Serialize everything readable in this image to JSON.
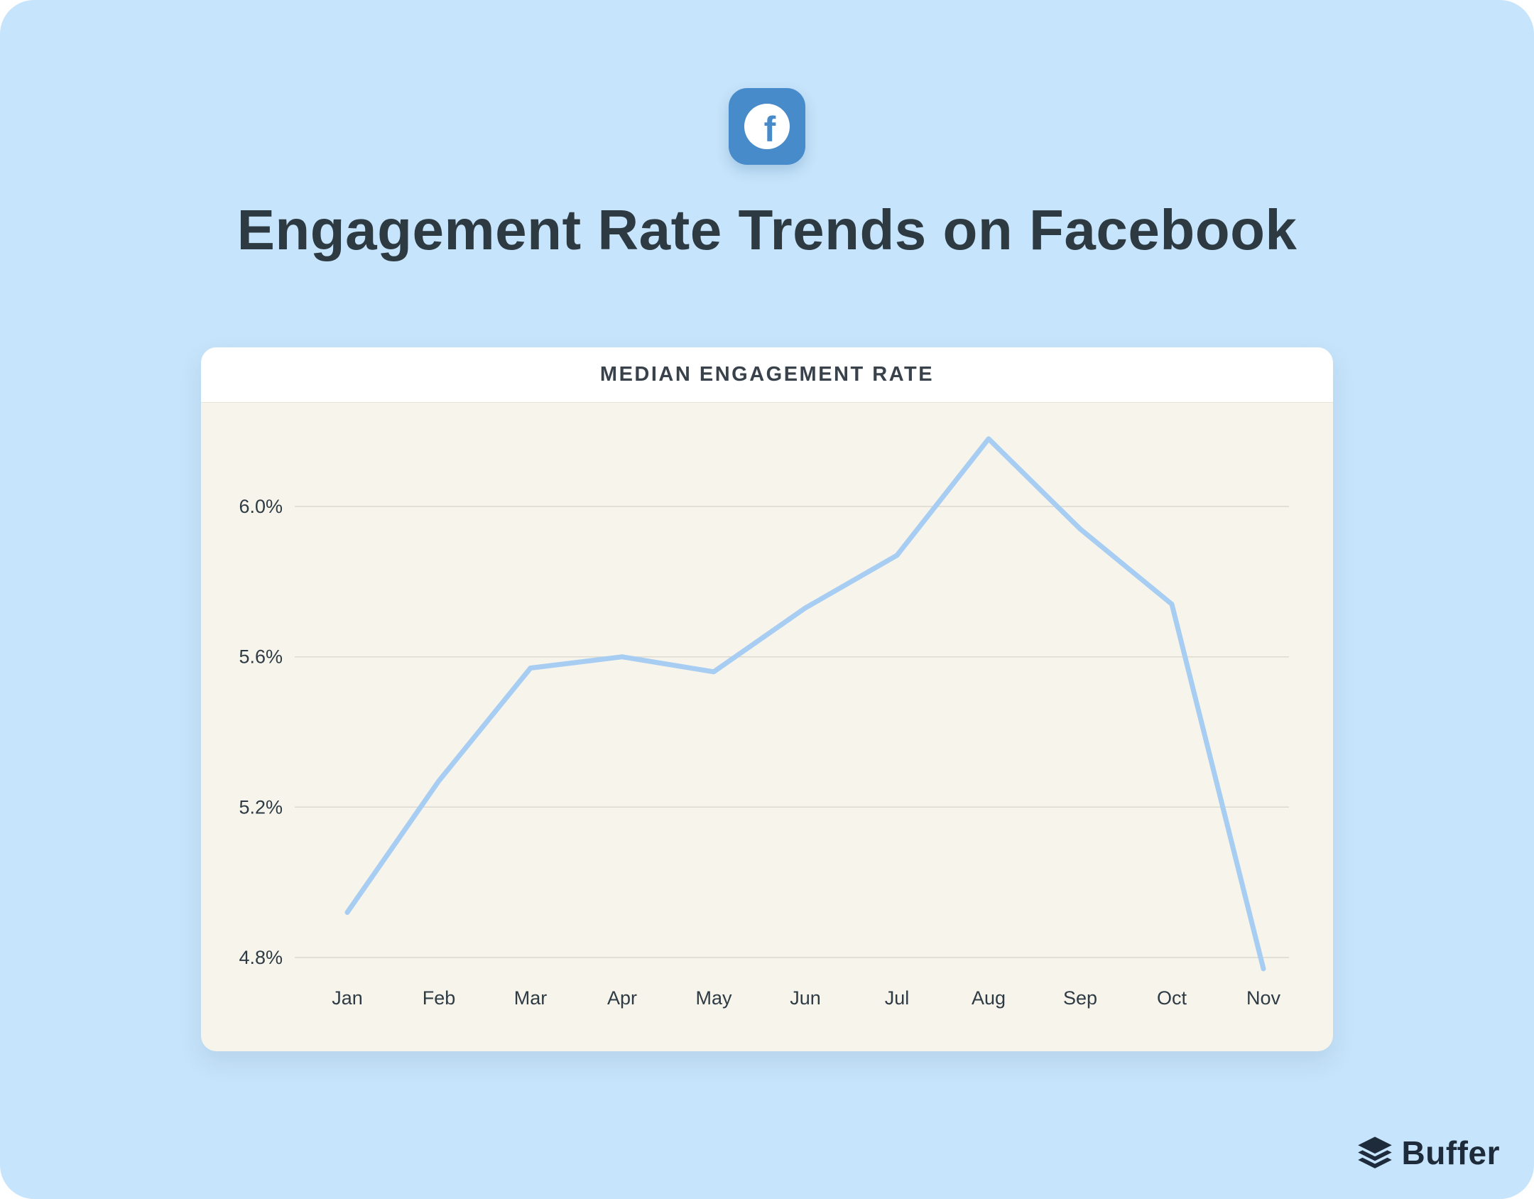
{
  "page": {
    "background": "#C6E4FB"
  },
  "header": {
    "title": "Engagement Rate Trends on Facebook"
  },
  "icons": {
    "facebook_glyph": "f",
    "facebook_color": "#478BCA",
    "buffer_color": "#1D2B3A"
  },
  "card": {
    "title": "MEDIAN ENGAGEMENT RATE"
  },
  "chart_data": {
    "type": "line",
    "title": "Median Engagement Rate",
    "categories": [
      "Jan",
      "Feb",
      "Mar",
      "Apr",
      "May",
      "Jun",
      "Jul",
      "Aug",
      "Sep",
      "Oct",
      "Nov"
    ],
    "values": [
      4.92,
      5.27,
      5.57,
      5.6,
      5.56,
      5.73,
      5.87,
      6.18,
      5.94,
      5.74,
      4.77
    ],
    "unit": "%",
    "yticks": [
      6.0,
      5.6,
      5.2,
      4.8
    ],
    "ytick_labels": [
      "6.0%",
      "5.6%",
      "5.2%",
      "4.8%"
    ],
    "ylim": [
      4.55,
      6.28
    ],
    "grid": true,
    "legend": "none",
    "line_color": "#A7CDF3"
  },
  "footer": {
    "brand": "Buffer"
  }
}
